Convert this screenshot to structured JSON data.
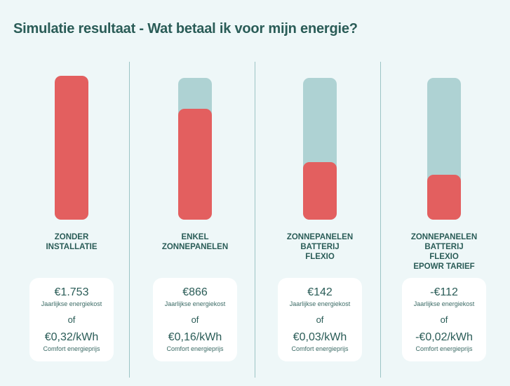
{
  "title": "Simulatie resultaat - Wat betaal ik voor mijn energie?",
  "colors": {
    "cost_bar": "#e35f5f",
    "track": "#aed2d3",
    "background": "#eef7f8",
    "text": "#2a5c57"
  },
  "of_label": "of",
  "scenarios": [
    {
      "label": "ZONDER\nINSTALLATIE",
      "fill_fraction": 1.0,
      "annual_cost": "€1.753",
      "annual_cost_label": "Jaarlijkse energiekost",
      "price": "€0,32/kWh",
      "price_label": "Comfort energieprijs"
    },
    {
      "label": "ENKEL\nZONNEPANELEN",
      "fill_fraction": 0.77,
      "annual_cost": "€866",
      "annual_cost_label": "Jaarlijkse energiekost",
      "price": "€0,16/kWh",
      "price_label": "Comfort energieprijs"
    },
    {
      "label": "ZONNEPANELEN\nBATTERIJ\nFLEXIO",
      "fill_fraction": 0.4,
      "annual_cost": "€142",
      "annual_cost_label": "Jaarlijkse energiekost",
      "price": "€0,03/kWh",
      "price_label": "Comfort energieprijs"
    },
    {
      "label": "ZONNEPANELEN\nBATTERIJ\nFLEXIO\nePOWR TARIEF",
      "fill_fraction": 0.31,
      "annual_cost": "-€112",
      "annual_cost_label": "Jaarlijkse energiekost",
      "price": "-€0,02/kWh",
      "price_label": "Comfort energieprijs"
    }
  ]
}
